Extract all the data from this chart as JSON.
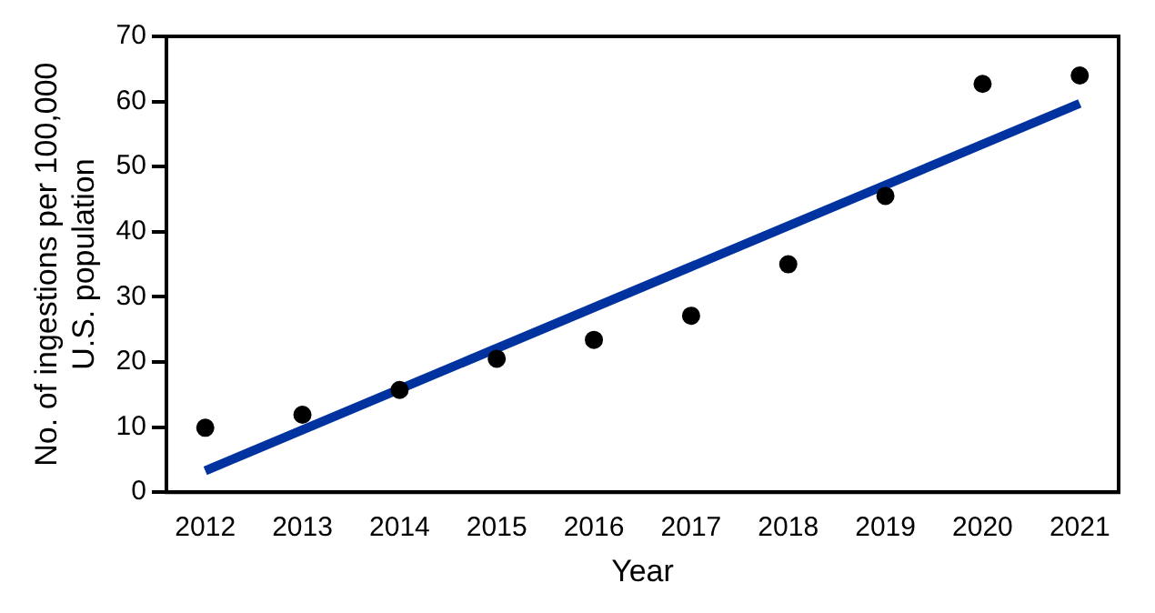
{
  "chart_data": {
    "type": "scatter",
    "xlabel": "Year",
    "ylabel": "No. of ingestions per 100,000 U.S. population",
    "xlim": [
      2011.6,
      2021.4
    ],
    "xticks": [
      2012,
      2013,
      2014,
      2015,
      2016,
      2017,
      2018,
      2019,
      2020,
      2021
    ],
    "ylim": [
      0,
      70
    ],
    "yticks": [
      0,
      10,
      20,
      30,
      40,
      50,
      60,
      70
    ],
    "grid": false,
    "legend": false,
    "marker": "circle",
    "series": [
      {
        "color": "#000000",
        "x": [
          2012,
          2013,
          2014,
          2015,
          2016,
          2017,
          2018,
          2019,
          2020,
          2021
        ],
        "values": [
          9.9,
          11.9,
          15.7,
          20.5,
          23.4,
          27.1,
          35.0,
          45.5,
          62.7,
          64.0
        ]
      },
      {
        "type": "line",
        "marker": "none",
        "color": "#0033a0",
        "x": [
          2012,
          2021
        ],
        "values": [
          3.3,
          59.7
        ]
      }
    ]
  }
}
